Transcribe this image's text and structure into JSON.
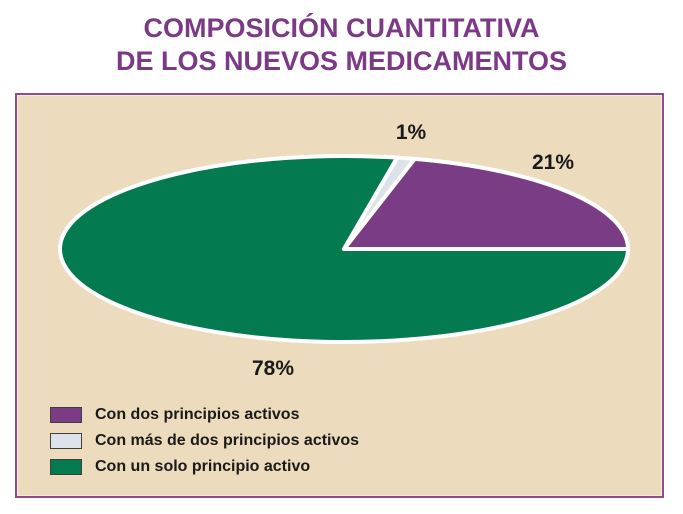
{
  "title": {
    "line1": "COMPOSICIÓN CUANTITATIVA",
    "line2": "DE LOS NUEVOS MEDICAMENTOS"
  },
  "colors": {
    "title_text": "#7c3a86",
    "panel_background": "#ecdbbc",
    "panel_border": "#8d4b91",
    "slice_separator": "#ffffff",
    "label_text": "#1a1a1a"
  },
  "chart_data": {
    "type": "pie",
    "title": "COMPOSICIÓN CUANTITATIVA DE LOS NUEVOS MEDICAMENTOS",
    "shape": "ellipse",
    "start_angle_deg": 0,
    "direction": "counterclockwise",
    "legend_position": "bottom-left",
    "slices": [
      {
        "label": "Con dos principios activos",
        "value": 21,
        "display": "21%",
        "color": "#7a3c85"
      },
      {
        "label": "Con más de dos principios activos",
        "value": 1,
        "display": "1%",
        "color": "#dce3e8"
      },
      {
        "label": "Con un solo principio activo",
        "value": 78,
        "display": "78%",
        "color": "#047a50"
      }
    ]
  }
}
